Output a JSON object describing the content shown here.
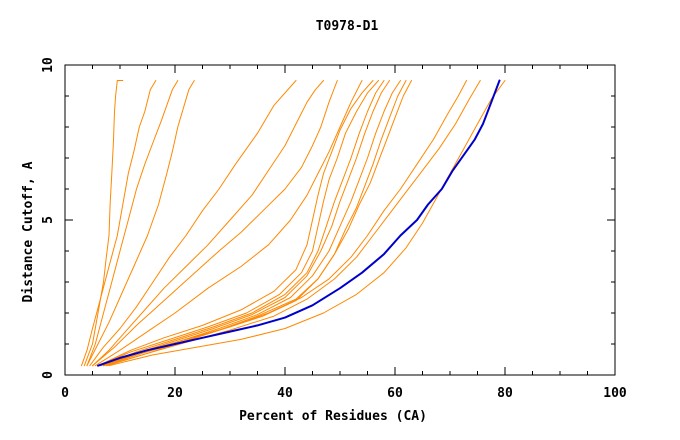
{
  "chart_data": {
    "type": "line",
    "title": "T0978-D1",
    "xlabel": "Percent of Residues (CA)",
    "ylabel": "Distance Cutoff, A",
    "xlim": [
      0,
      100
    ],
    "ylim": [
      0,
      10
    ],
    "x_ticks": [
      0,
      20,
      40,
      60,
      80,
      100
    ],
    "y_ticks": [
      0,
      5,
      10
    ],
    "x_minor_step": 5,
    "y_minor_step": 1,
    "grid": false,
    "colors": {
      "highlight": "#0000cc",
      "others": "#ff8800"
    },
    "series": [
      {
        "highlight": false,
        "x": [
          3.5,
          5,
          6,
          7,
          7.5,
          8,
          8.2,
          8.5,
          8.8,
          9.0,
          9.2,
          9.5,
          10.5
        ],
        "y": [
          0.3,
          1,
          2,
          3,
          3.8,
          4.5,
          5.5,
          6.5,
          7.5,
          8.5,
          9.0,
          9.5,
          9.5
        ]
      },
      {
        "highlight": false,
        "x": [
          3,
          4,
          5,
          6.5,
          8,
          9.5,
          10.5,
          11.5,
          12.5,
          13.5,
          14.5,
          15.5,
          16.5
        ],
        "y": [
          0.3,
          0.8,
          1.5,
          2.5,
          3.5,
          4.5,
          5.5,
          6.5,
          7.2,
          8.0,
          8.5,
          9.2,
          9.5
        ]
      },
      {
        "highlight": false,
        "x": [
          4,
          5.5,
          7,
          8.5,
          10,
          11.5,
          13,
          14.5,
          16,
          17.5,
          18.5,
          19.5,
          20.5
        ],
        "y": [
          0.3,
          1,
          2,
          3,
          4,
          5,
          6,
          6.8,
          7.5,
          8.2,
          8.7,
          9.2,
          9.5
        ]
      },
      {
        "highlight": false,
        "x": [
          4,
          6,
          8,
          10,
          12.5,
          15,
          17,
          18.5,
          19.5,
          20.5,
          21.5,
          22.5,
          23.5
        ],
        "y": [
          0.3,
          1,
          1.7,
          2.5,
          3.5,
          4.5,
          5.5,
          6.5,
          7.2,
          8.0,
          8.6,
          9.2,
          9.5
        ]
      },
      {
        "highlight": false,
        "x": [
          4.5,
          7,
          10,
          13,
          16,
          19,
          22,
          25,
          28,
          31,
          35,
          38,
          42
        ],
        "y": [
          0.3,
          0.9,
          1.5,
          2.2,
          3.0,
          3.8,
          4.5,
          5.3,
          6.0,
          6.8,
          7.8,
          8.7,
          9.5
        ]
      },
      {
        "highlight": false,
        "x": [
          5,
          8,
          11,
          14,
          18,
          22,
          26,
          30,
          34,
          37,
          40,
          42,
          44,
          45.5,
          47
        ],
        "y": [
          0.3,
          0.8,
          1.4,
          2.0,
          2.8,
          3.5,
          4.2,
          5.0,
          5.8,
          6.6,
          7.4,
          8.1,
          8.8,
          9.2,
          9.5
        ]
      },
      {
        "highlight": false,
        "x": [
          5,
          9,
          13,
          18,
          23,
          28,
          32,
          36,
          40,
          43,
          45,
          46.5,
          48,
          49.5
        ],
        "y": [
          0.3,
          0.9,
          1.6,
          2.4,
          3.2,
          4.0,
          4.6,
          5.3,
          6.0,
          6.7,
          7.4,
          8.0,
          8.8,
          9.5
        ]
      },
      {
        "highlight": false,
        "x": [
          5.5,
          10,
          15,
          20,
          26,
          32,
          37,
          41,
          44,
          46,
          48,
          50,
          52,
          54
        ],
        "y": [
          0.3,
          0.8,
          1.4,
          2.0,
          2.8,
          3.5,
          4.2,
          5.0,
          5.8,
          6.5,
          7.2,
          8.0,
          8.8,
          9.5
        ]
      },
      {
        "highlight": false,
        "x": [
          6,
          12,
          18,
          25,
          32,
          38,
          42,
          44,
          45,
          46,
          47,
          48.5,
          50,
          52,
          54,
          56
        ],
        "y": [
          0.3,
          0.8,
          1.2,
          1.6,
          2.1,
          2.7,
          3.4,
          4.2,
          5.0,
          5.8,
          6.5,
          7.2,
          7.9,
          8.6,
          9.1,
          9.5
        ]
      },
      {
        "highlight": false,
        "x": [
          6,
          12,
          19,
          26,
          33,
          39,
          43,
          45,
          46,
          47,
          48,
          49.5,
          51,
          53,
          55,
          57
        ],
        "y": [
          0.3,
          0.75,
          1.15,
          1.55,
          2.0,
          2.6,
          3.3,
          4.0,
          4.8,
          5.6,
          6.3,
          7.0,
          7.8,
          8.5,
          9.1,
          9.5
        ]
      },
      {
        "highlight": false,
        "x": [
          6.5,
          13,
          20,
          27,
          34,
          40,
          44,
          46,
          47.5,
          49,
          50.5,
          52,
          53.5,
          55,
          56.5,
          58
        ],
        "y": [
          0.3,
          0.75,
          1.15,
          1.55,
          2.0,
          2.6,
          3.3,
          4.0,
          4.8,
          5.6,
          6.3,
          7.0,
          7.8,
          8.5,
          9.1,
          9.5
        ]
      },
      {
        "highlight": false,
        "x": [
          6.5,
          13,
          20,
          27,
          34,
          40,
          44,
          46.5,
          48.5,
          50,
          51.5,
          53,
          54.5,
          56,
          57.5,
          59
        ],
        "y": [
          0.3,
          0.7,
          1.1,
          1.5,
          1.95,
          2.5,
          3.2,
          4.0,
          4.8,
          5.6,
          6.3,
          7.0,
          7.8,
          8.5,
          9.1,
          9.5
        ]
      },
      {
        "highlight": false,
        "x": [
          7,
          14,
          21,
          28,
          35,
          41,
          45,
          48,
          50,
          52,
          53.5,
          55,
          56.5,
          58,
          59.5,
          61
        ],
        "y": [
          0.3,
          0.7,
          1.1,
          1.5,
          1.95,
          2.5,
          3.2,
          4.0,
          4.8,
          5.6,
          6.3,
          7.0,
          7.8,
          8.5,
          9.1,
          9.5
        ]
      },
      {
        "highlight": false,
        "x": [
          7,
          14,
          21,
          28,
          35,
          42,
          46,
          49,
          51.5,
          53.5,
          55.5,
          57,
          58.5,
          60,
          61.5,
          63
        ],
        "y": [
          0.3,
          0.7,
          1.05,
          1.45,
          1.9,
          2.45,
          3.1,
          3.9,
          4.7,
          5.5,
          6.2,
          6.9,
          7.6,
          8.3,
          9.0,
          9.5
        ]
      },
      {
        "highlight": false,
        "x": [
          7.5,
          15,
          22,
          29,
          36,
          42,
          46,
          49,
          51,
          53,
          54.5,
          56,
          57.5,
          59,
          60.5,
          62
        ],
        "y": [
          0.3,
          0.7,
          1.1,
          1.5,
          1.9,
          2.4,
          3.1,
          3.9,
          4.7,
          5.4,
          6.1,
          6.8,
          7.6,
          8.3,
          9.0,
          9.5
        ]
      },
      {
        "highlight": false,
        "x": [
          7,
          14,
          22,
          30,
          37,
          43,
          48,
          52,
          55,
          58,
          61,
          64,
          67,
          69.5,
          71.5,
          73
        ],
        "y": [
          0.3,
          0.75,
          1.15,
          1.55,
          2.0,
          2.5,
          3.1,
          3.8,
          4.5,
          5.3,
          6.0,
          6.8,
          7.6,
          8.4,
          9.0,
          9.5
        ]
      },
      {
        "highlight": false,
        "x": [
          7.5,
          15,
          22,
          30,
          38,
          44,
          49,
          53,
          56,
          59,
          62,
          65,
          68,
          71,
          73.5,
          75.5
        ],
        "y": [
          0.3,
          0.7,
          1.05,
          1.45,
          1.9,
          2.45,
          3.1,
          3.8,
          4.5,
          5.2,
          5.9,
          6.6,
          7.3,
          8.1,
          8.9,
          9.5
        ]
      },
      {
        "highlight": false,
        "x": [
          8,
          16,
          24,
          32,
          40,
          47,
          53,
          58,
          62,
          65,
          67.5,
          70,
          72.5,
          75,
          77.5,
          80
        ],
        "y": [
          0.3,
          0.65,
          0.9,
          1.15,
          1.5,
          2.0,
          2.6,
          3.3,
          4.1,
          4.9,
          5.7,
          6.5,
          7.3,
          8.1,
          8.9,
          9.5
        ]
      },
      {
        "highlight": true,
        "x": [
          6,
          10,
          15,
          20,
          25,
          30,
          35,
          40,
          45,
          50,
          54,
          58,
          61,
          64,
          66,
          68.5,
          70.5,
          72.5,
          74.5,
          76,
          77.5,
          79
        ],
        "y": [
          0.3,
          0.55,
          0.8,
          1.0,
          1.2,
          1.4,
          1.6,
          1.85,
          2.25,
          2.8,
          3.3,
          3.9,
          4.5,
          5.0,
          5.5,
          6.0,
          6.6,
          7.1,
          7.6,
          8.1,
          8.8,
          9.5
        ]
      }
    ]
  }
}
